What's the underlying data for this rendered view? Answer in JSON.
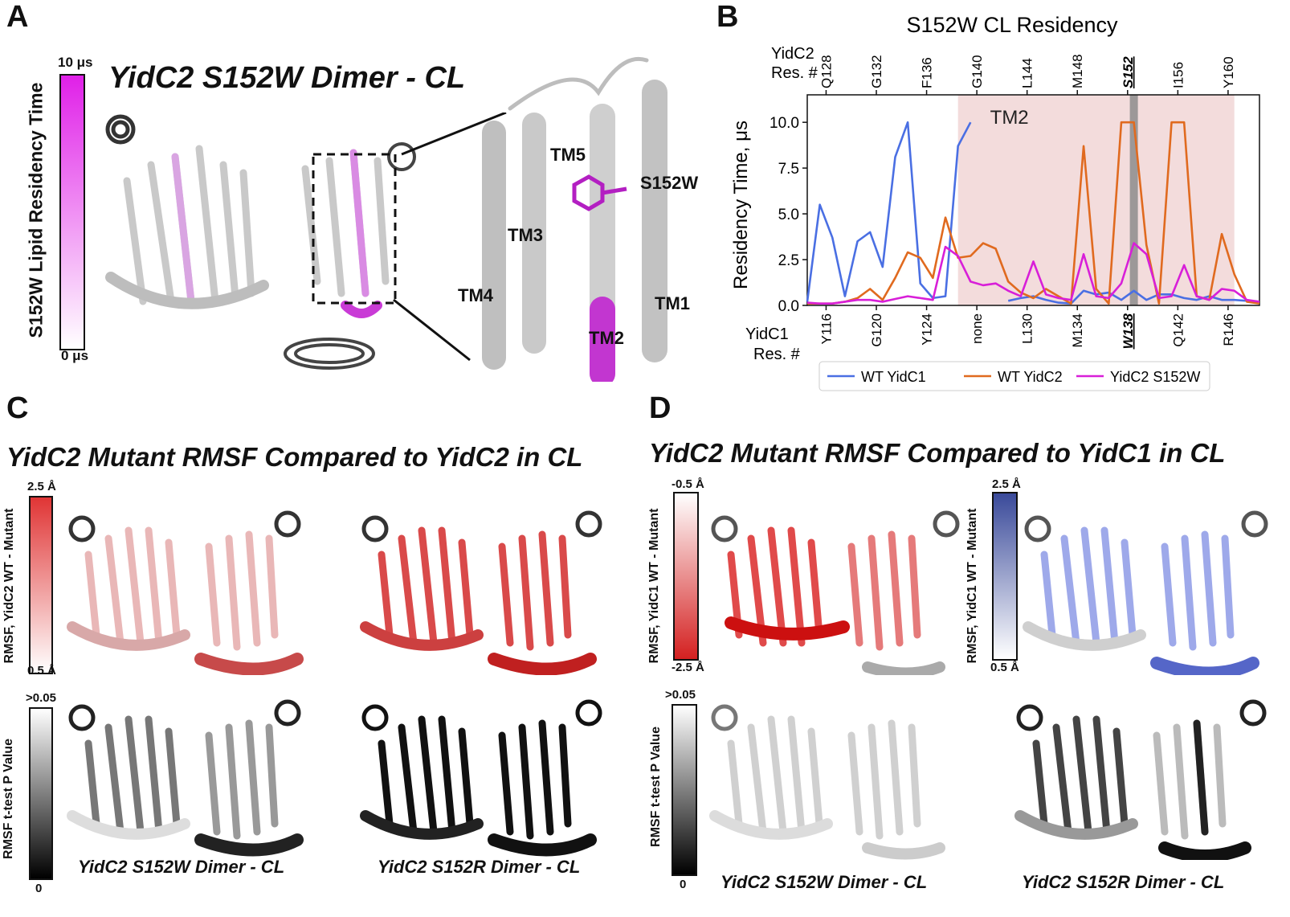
{
  "panels": {
    "A": {
      "label": "A",
      "title": "YidC2 S152W Dimer - CL",
      "colorbar": {
        "title": "S152W Lipid Residency Time",
        "max": "10 μs",
        "min": "0 μs",
        "color": "#e020e8"
      },
      "zoom_labels": [
        "TM5",
        "S152W",
        "TM3",
        "TM4",
        "TM1",
        "TM2"
      ]
    },
    "B": {
      "label": "B",
      "chart_data": {
        "type": "line",
        "title": "S152W CL Residency",
        "ylabel": "Residency Time, μs",
        "top_axis_title": [
          "YidC2",
          "Res. #"
        ],
        "bottom_axis_title": [
          "YidC1",
          "Res. #"
        ],
        "top_ticks": [
          "Q128",
          "G132",
          "F136",
          "G140",
          "L144",
          "M148",
          "S152",
          "I156",
          "Y160"
        ],
        "bottom_ticks": [
          "Y116",
          "G120",
          "Y124",
          "none",
          "L130",
          "M134",
          "W138",
          "Q142",
          "R146"
        ],
        "ylim": [
          0,
          11.5
        ],
        "yticks": [
          "0.0",
          "2.5",
          "5.0",
          "7.5",
          "10.0"
        ],
        "xlim": [
          0,
          36
        ],
        "shaded_region": {
          "x_start": 12,
          "x_end": 34,
          "label": "TM2",
          "color": "#f3dcdc"
        },
        "highlight_x": 26,
        "series": [
          {
            "name": "WT YidC1",
            "color": "#4a6fe3",
            "x": [
              0,
              1,
              2,
              3,
              4,
              5,
              6,
              7,
              8,
              9,
              10,
              11,
              12,
              13
            ],
            "y": [
              0.2,
              5.5,
              3.7,
              0.5,
              3.5,
              4.0,
              2.1,
              8.1,
              10.0,
              1.2,
              0.4,
              0.5,
              8.7,
              10.0
            ]
          },
          {
            "name": "WT YidC1",
            "color": "#4a6fe3",
            "x": [
              16,
              17,
              18,
              19,
              20,
              21,
              22,
              23,
              24,
              25,
              26,
              27,
              28,
              29,
              30,
              31,
              32,
              33,
              34,
              35,
              36
            ],
            "y": [
              0.25,
              0.4,
              0.5,
              0.3,
              0.15,
              0.1,
              0.8,
              0.6,
              0.7,
              0.3,
              0.8,
              0.3,
              0.6,
              0.6,
              0.4,
              0.3,
              0.5,
              0.3,
              0.3,
              0.25,
              0.2
            ]
          },
          {
            "name": "WT YidC2",
            "color": "#e06a1f",
            "x": [
              0,
              1,
              2,
              3,
              4,
              5,
              6,
              7,
              8,
              9,
              10,
              11,
              12,
              13,
              14,
              15,
              16,
              17,
              18,
              19,
              20,
              21,
              22,
              23,
              24,
              25,
              26,
              27,
              28,
              29,
              30,
              31,
              32,
              33,
              34,
              35,
              36
            ],
            "y": [
              0.1,
              0.1,
              0.1,
              0.2,
              0.4,
              0.9,
              0.3,
              1.5,
              2.9,
              2.6,
              1.5,
              4.8,
              2.6,
              2.7,
              3.4,
              3.1,
              1.3,
              0.7,
              0.4,
              0.9,
              0.5,
              0.1,
              8.7,
              0.9,
              0.1,
              10.0,
              10.0,
              3.3,
              0.1,
              10.0,
              10.0,
              0.5,
              0.3,
              3.9,
              1.7,
              0.2,
              0.1
            ]
          },
          {
            "name": "YidC2 S152W",
            "color": "#d81fd8",
            "x": [
              0,
              1,
              2,
              3,
              4,
              5,
              6,
              7,
              8,
              9,
              10,
              11,
              12,
              13,
              14,
              15,
              16,
              17,
              18,
              19,
              20,
              21,
              22,
              23,
              24,
              25,
              26,
              27,
              28,
              29,
              30,
              31,
              32,
              33,
              34,
              35,
              36
            ],
            "y": [
              0.15,
              0.1,
              0.1,
              0.2,
              0.3,
              0.3,
              0.2,
              0.35,
              0.5,
              0.4,
              0.3,
              3.2,
              2.7,
              1.3,
              1.1,
              1.2,
              0.8,
              0.5,
              2.4,
              0.6,
              0.4,
              0.3,
              2.8,
              0.5,
              0.4,
              1.2,
              3.4,
              2.8,
              0.4,
              0.5,
              2.2,
              0.5,
              0.3,
              0.9,
              0.8,
              0.3,
              0.2
            ]
          }
        ],
        "legend": [
          "WT YidC1",
          "WT YidC2",
          "YidC2 S152W"
        ],
        "legend_placement": "bottom"
      }
    },
    "C": {
      "label": "C",
      "title": "YidC2 Mutant RMSF Compared to YidC2 in CL",
      "colorbar_rmsf": {
        "title": "RMSF, YidC2 WT - Mutant",
        "max": "2.5 Å",
        "min": "0.5 Å",
        "color": "#e03535"
      },
      "colorbar_p": {
        "title": "RMSF t-test P Value",
        "max": ">0.05",
        "min": "0"
      },
      "captions": [
        "YidC2 S152W Dimer - CL",
        "YidC2 S152R Dimer - CL"
      ]
    },
    "D": {
      "label": "D",
      "title": "YidC2 Mutant RMSF Compared to YidC1 in CL",
      "colorbar_red": {
        "title": "RMSF, YidC1 WT - Mutant",
        "max": "-0.5 Å",
        "min": "-2.5 Å",
        "color": "#d42020"
      },
      "colorbar_blue": {
        "title": "RMSF, YidC1 WT - Mutant",
        "max": "2.5 Å",
        "min": "0.5 Å",
        "color": "#3a4a9a"
      },
      "colorbar_p": {
        "title": "RMSF t-test P Value",
        "max": ">0.05",
        "min": "0"
      },
      "captions": [
        "YidC2 S152W Dimer - CL",
        "YidC2 S152R Dimer - CL"
      ]
    }
  },
  "colors": {
    "helix_grey": "#c8c8c8",
    "helix_dark": "#3a3a3a",
    "magenta": "#d43bd8",
    "red": "#dd3b3b",
    "blue": "#7f8fe0"
  }
}
